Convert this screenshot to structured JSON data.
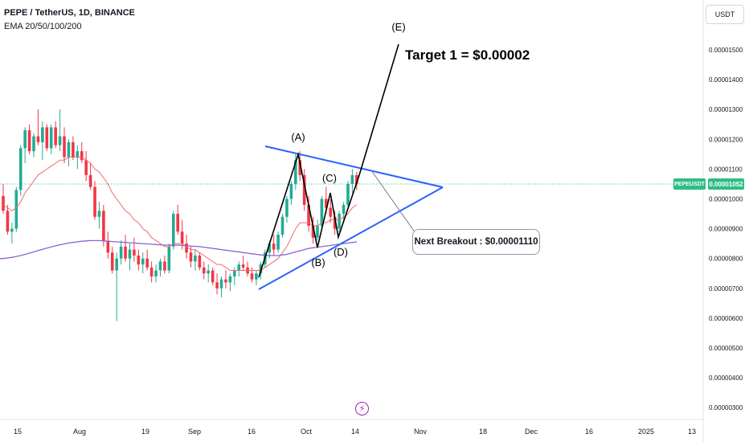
{
  "header": {
    "title": "PEPE / TetherUS, 1D, BINANCE",
    "indicator": "EMA 20/50/100/200"
  },
  "price_axis": {
    "unit": "USDT",
    "current_price": "0.00001052",
    "symbol_badge": "PEPEUSDT"
  },
  "annotations": {
    "target": "Target 1 = $0.00002",
    "breakout": "Next Breakout : $0.00001110",
    "waves": [
      "(A)",
      "(B)",
      "(C)",
      "(D)",
      "(E)"
    ]
  },
  "chart_data": {
    "type": "candlestick",
    "y_ticks": [
      "0.00001500",
      "0.00001400",
      "0.00001300",
      "0.00001200",
      "0.00001100",
      "0.00001000",
      "0.00000900",
      "0.00000800",
      "0.00000700",
      "0.00000600",
      "0.00000500",
      "0.00000400",
      "0.00000300"
    ],
    "x_ticks": [
      "15",
      "Aug",
      "19",
      "Sep",
      "16",
      "Oct",
      "14",
      "Nov",
      "18",
      "Dec",
      "16",
      "2025",
      "13"
    ],
    "ohlc": [
      [
        10.1,
        10.5,
        9.5,
        9.6
      ],
      [
        9.6,
        9.8,
        8.8,
        8.9
      ],
      [
        8.9,
        9.2,
        8.5,
        9.0
      ],
      [
        9.0,
        10.4,
        8.9,
        10.3
      ],
      [
        10.3,
        11.8,
        10.1,
        11.7
      ],
      [
        11.7,
        12.4,
        11.2,
        12.3
      ],
      [
        12.3,
        12.5,
        11.5,
        11.6
      ],
      [
        11.6,
        12.2,
        11.4,
        12.1
      ],
      [
        12.1,
        13.0,
        11.8,
        11.9
      ],
      [
        11.9,
        12.6,
        11.3,
        12.4
      ],
      [
        12.4,
        12.5,
        11.6,
        11.7
      ],
      [
        11.7,
        12.5,
        11.5,
        12.4
      ],
      [
        12.4,
        12.6,
        11.7,
        11.8
      ],
      [
        11.8,
        13.0,
        11.6,
        12.1
      ],
      [
        12.1,
        12.4,
        11.2,
        11.4
      ],
      [
        11.4,
        12.0,
        11.1,
        11.9
      ],
      [
        11.9,
        12.1,
        11.3,
        11.4
      ],
      [
        11.4,
        11.8,
        11.0,
        11.6
      ],
      [
        11.6,
        11.9,
        11.2,
        11.3
      ],
      [
        11.3,
        11.6,
        10.6,
        10.8
      ],
      [
        10.8,
        11.2,
        10.3,
        10.4
      ],
      [
        10.4,
        10.6,
        9.3,
        9.4
      ],
      [
        9.4,
        9.9,
        9.0,
        9.6
      ],
      [
        9.6,
        9.8,
        8.4,
        8.6
      ],
      [
        8.6,
        8.9,
        8.0,
        8.2
      ],
      [
        8.2,
        8.4,
        7.5,
        7.6
      ],
      [
        7.6,
        8.2,
        5.9,
        8.0
      ],
      [
        8.0,
        8.6,
        7.8,
        8.4
      ],
      [
        8.4,
        8.8,
        7.9,
        8.0
      ],
      [
        8.0,
        8.5,
        7.6,
        8.3
      ],
      [
        8.3,
        8.7,
        7.9,
        8.1
      ],
      [
        8.1,
        8.3,
        7.6,
        7.8
      ],
      [
        7.8,
        8.2,
        7.5,
        8.0
      ],
      [
        8.0,
        8.3,
        7.6,
        7.7
      ],
      [
        7.7,
        7.9,
        7.2,
        7.4
      ],
      [
        7.4,
        7.8,
        7.2,
        7.6
      ],
      [
        7.6,
        8.0,
        7.4,
        7.9
      ],
      [
        7.9,
        8.1,
        7.5,
        7.6
      ],
      [
        7.6,
        8.5,
        7.5,
        8.4
      ],
      [
        8.4,
        9.6,
        8.3,
        9.5
      ],
      [
        9.5,
        9.8,
        8.8,
        8.9
      ],
      [
        8.9,
        9.3,
        8.3,
        8.5
      ],
      [
        8.5,
        8.8,
        8.0,
        8.2
      ],
      [
        8.2,
        8.4,
        7.7,
        7.9
      ],
      [
        7.9,
        8.3,
        7.6,
        8.1
      ],
      [
        8.1,
        8.2,
        7.6,
        7.7
      ],
      [
        7.7,
        7.9,
        7.3,
        7.5
      ],
      [
        7.5,
        7.8,
        7.2,
        7.6
      ],
      [
        7.6,
        7.7,
        7.1,
        7.2
      ],
      [
        7.2,
        7.5,
        6.8,
        7.0
      ],
      [
        7.0,
        7.4,
        6.7,
        7.3
      ],
      [
        7.3,
        7.6,
        7.0,
        7.2
      ],
      [
        7.2,
        7.5,
        6.9,
        7.4
      ],
      [
        7.4,
        7.7,
        7.1,
        7.6
      ],
      [
        7.6,
        7.9,
        7.4,
        7.8
      ],
      [
        7.8,
        8.1,
        7.6,
        7.7
      ],
      [
        7.7,
        7.9,
        7.4,
        7.5
      ],
      [
        7.5,
        7.7,
        7.2,
        7.3
      ],
      [
        7.3,
        7.6,
        7.1,
        7.5
      ],
      [
        7.5,
        7.9,
        7.3,
        7.8
      ],
      [
        7.8,
        8.3,
        7.7,
        8.2
      ],
      [
        8.2,
        8.6,
        8.0,
        8.5
      ],
      [
        8.5,
        8.8,
        8.1,
        8.3
      ],
      [
        8.3,
        8.9,
        8.2,
        8.8
      ],
      [
        8.8,
        9.5,
        8.7,
        9.4
      ],
      [
        9.4,
        10.1,
        9.2,
        10.0
      ],
      [
        10.0,
        10.6,
        9.8,
        10.5
      ],
      [
        10.5,
        11.5,
        10.3,
        11.3
      ],
      [
        11.3,
        11.6,
        10.6,
        10.8
      ],
      [
        10.8,
        11.0,
        9.6,
        9.8
      ],
      [
        9.8,
        10.1,
        8.9,
        9.1
      ],
      [
        9.1,
        9.4,
        8.5,
        8.7
      ],
      [
        8.7,
        9.3,
        8.6,
        9.1
      ],
      [
        9.1,
        10.1,
        9.0,
        10.0
      ],
      [
        10.0,
        10.4,
        9.5,
        9.7
      ],
      [
        9.7,
        10.0,
        9.2,
        9.4
      ],
      [
        9.4,
        9.6,
        8.8,
        9.0
      ],
      [
        9.0,
        9.6,
        8.9,
        9.5
      ],
      [
        9.5,
        9.9,
        9.3,
        9.8
      ],
      [
        9.8,
        10.6,
        9.7,
        10.5
      ],
      [
        10.5,
        11.0,
        10.2,
        10.8
      ],
      [
        10.8,
        10.9,
        10.3,
        10.5
      ]
    ],
    "ema_red": [
      9.8,
      9.7,
      9.6,
      9.7,
      9.9,
      10.2,
      10.4,
      10.6,
      10.8,
      10.9,
      11.0,
      11.1,
      11.2,
      11.3,
      11.3,
      11.4,
      11.4,
      11.4,
      11.4,
      11.3,
      11.2,
      11.0,
      10.9,
      10.7,
      10.5,
      10.2,
      10.0,
      9.8,
      9.6,
      9.5,
      9.3,
      9.2,
      9.0,
      8.9,
      8.7,
      8.6,
      8.5,
      8.4,
      8.4,
      8.5,
      8.5,
      8.5,
      8.4,
      8.3,
      8.3,
      8.2,
      8.1,
      8.0,
      7.9,
      7.8,
      7.8,
      7.7,
      7.6,
      7.6,
      7.6,
      7.6,
      7.6,
      7.6,
      7.6,
      7.6,
      7.7,
      7.8,
      7.9,
      8.0,
      8.2,
      8.4,
      8.7,
      9.0,
      9.2,
      9.2,
      9.2,
      9.1,
      9.1,
      9.2,
      9.2,
      9.3,
      9.3,
      9.3,
      9.4,
      9.5,
      9.7,
      9.8
    ],
    "ema_purple": [
      8.0,
      8.02,
      8.04,
      8.07,
      8.1,
      8.14,
      8.18,
      8.22,
      8.27,
      8.31,
      8.35,
      8.39,
      8.43,
      8.46,
      8.49,
      8.52,
      8.54,
      8.56,
      8.58,
      8.59,
      8.6,
      8.6,
      8.6,
      8.59,
      8.58,
      8.57,
      8.56,
      8.55,
      8.54,
      8.53,
      8.52,
      8.51,
      8.5,
      8.49,
      8.48,
      8.47,
      8.46,
      8.45,
      8.45,
      8.45,
      8.45,
      8.44,
      8.43,
      8.42,
      8.41,
      8.4,
      8.38,
      8.36,
      8.34,
      8.32,
      8.3,
      8.28,
      8.26,
      8.24,
      8.22,
      8.2,
      8.18,
      8.16,
      8.14,
      8.12,
      8.11,
      8.1,
      8.1,
      8.1,
      8.12,
      8.14,
      8.18,
      8.22,
      8.26,
      8.3,
      8.34,
      8.36,
      8.38,
      8.4,
      8.42,
      8.44,
      8.46,
      8.48,
      8.5,
      8.52,
      8.54,
      8.56
    ]
  }
}
